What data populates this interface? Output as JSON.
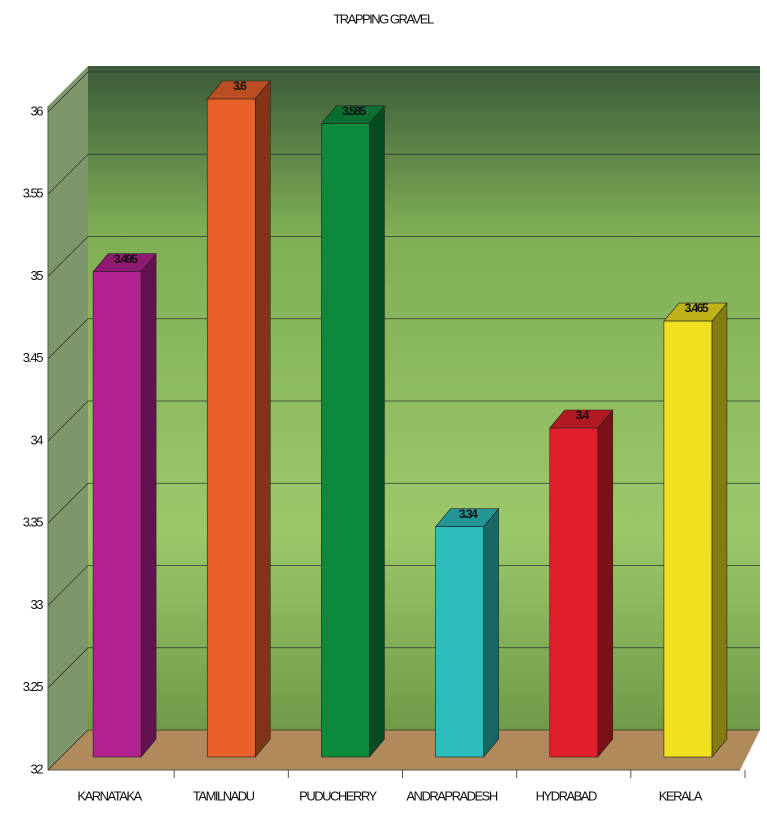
{
  "chart_data": {
    "type": "bar3d",
    "title": "TRAPPING GRAVEL",
    "categories": [
      "KARNATAKA",
      "TAMILNADU",
      "PUDUCHERRY",
      "ANDRAPRADESH",
      "HYDRABAD",
      "KERALA"
    ],
    "values": [
      3.495,
      3.6,
      3.585,
      3.34,
      3.4,
      3.465
    ],
    "colors": [
      "#b3208f",
      "#e8602a",
      "#0b8a3c",
      "#2bbcbc",
      "#e01f2b",
      "#f0e020"
    ],
    "ylim": [
      3.2,
      3.6
    ],
    "yticks": [
      {
        "value": 3.2,
        "label": "32"
      },
      3.25,
      {
        "value": 3.3,
        "label": "33"
      },
      3.35,
      {
        "value": 3.4,
        "label": "34"
      },
      3.45,
      {
        "value": 3.5,
        "label": "35"
      },
      3.55,
      {
        "value": 3.6,
        "label": "36"
      }
    ],
    "grid": true
  }
}
